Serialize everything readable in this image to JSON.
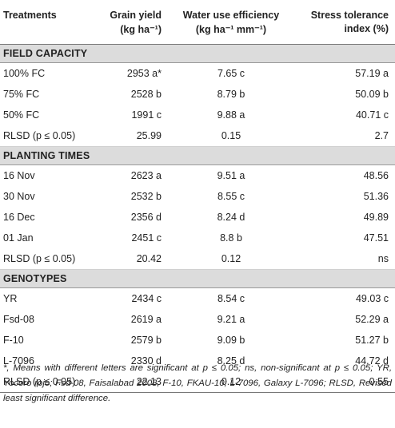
{
  "headers": {
    "c1_line1": "Treatments",
    "c2_line1": "Grain yield",
    "c2_line2": "(kg ha⁻¹)",
    "c3_line1": "Water use efficiency",
    "c3_line2": "(kg ha⁻¹ mm⁻¹)",
    "c4_line1": "Stress tolerance",
    "c4_line2": "index (%)"
  },
  "sections": [
    {
      "title": "FIELD CAPACITY",
      "rows": [
        {
          "t": "100% FC",
          "gy": "2953 a*",
          "wue": "7.65 c",
          "sti": "57.19 a"
        },
        {
          "t": "75% FC",
          "gy": "2528 b",
          "wue": "8.79 b",
          "sti": "50.09 b"
        },
        {
          "t": "50% FC",
          "gy": "1991 c",
          "wue": "9.88 a",
          "sti": "40.71 c"
        },
        {
          "t": "RLSD (p ≤ 0.05)",
          "gy": "25.99",
          "wue": "0.15",
          "sti": "2.7"
        }
      ]
    },
    {
      "title": "PLANTING TIMES",
      "rows": [
        {
          "t": "16 Nov",
          "gy": "2623 a",
          "wue": "9.51 a",
          "sti": "48.56"
        },
        {
          "t": "30 Nov",
          "gy": "2532 b",
          "wue": "8.55 c",
          "sti": "51.36"
        },
        {
          "t": "16 Dec",
          "gy": "2356 d",
          "wue": "8.24 d",
          "sti": "49.89"
        },
        {
          "t": "01 Jan",
          "gy": "2451 c",
          "wue": "8.8 b",
          "sti": "47.51"
        },
        {
          "t": "RLSD (p ≤ 0.05)",
          "gy": "20.42",
          "wue": "0.12",
          "sti": "ns"
        }
      ]
    },
    {
      "title": "GENOTYPES",
      "rows": [
        {
          "t": "YR",
          "gy": "2434 c",
          "wue": "8.54 c",
          "sti": "49.03 c"
        },
        {
          "t": "Fsd-08",
          "gy": "2619 a",
          "wue": "9.21 a",
          "sti": "52.29 a"
        },
        {
          "t": "F-10",
          "gy": "2579 b",
          "wue": "9.09 b",
          "sti": "51.27 b"
        },
        {
          "t": "L-7096",
          "gy": "2330 d",
          "wue": "8.25 d",
          "sti": "44.72 d"
        },
        {
          "t": "RLSD (p ≤ 0.05)",
          "gy": "22.13",
          "wue": "0.12",
          "sti": "0.55"
        }
      ]
    }
  ],
  "footnote": "*, Means with different letters are significant at p ≤ 0.05; ns, non-significant at p ≤ 0.05; YR, Yocoro rojo; Fsd-08, Faisalabad 2008; F-10, FKAU-10; L-7096, Galaxy L-7096; RLSD, Revised least significant difference."
}
